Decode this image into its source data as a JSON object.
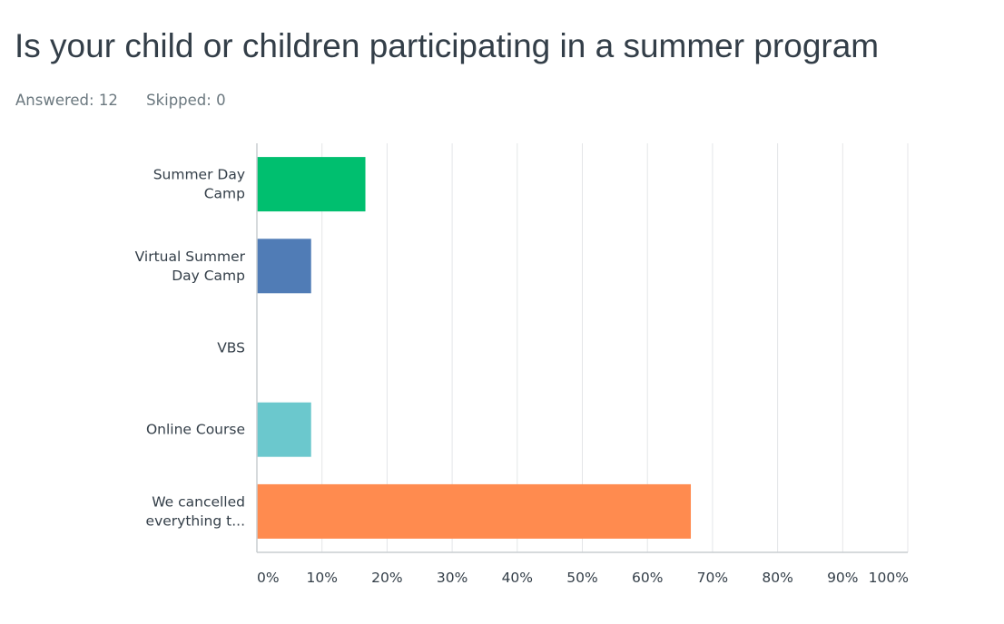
{
  "question": {
    "title": "Is your child or children participating in a summer program",
    "answered": "Answered: 12",
    "skipped": "Skipped: 0"
  },
  "chart_data": {
    "type": "bar",
    "orientation": "horizontal",
    "categories": [
      [
        "Summer Day",
        "Camp"
      ],
      [
        "Virtual Summer",
        "Day Camp"
      ],
      [
        "VBS"
      ],
      [
        "Online Course"
      ],
      [
        "We cancelled",
        "everything t..."
      ]
    ],
    "values": [
      16.67,
      8.33,
      0,
      8.33,
      66.67
    ],
    "colors": [
      "#00bf6f",
      "#507cb6",
      "#f9be00",
      "#6bc8cd",
      "#ff8b4f"
    ],
    "xlim": [
      0,
      100
    ],
    "xticks": [
      "0%",
      "10%",
      "20%",
      "30%",
      "40%",
      "50%",
      "60%",
      "70%",
      "80%",
      "90%",
      "100%"
    ],
    "grid": true
  }
}
